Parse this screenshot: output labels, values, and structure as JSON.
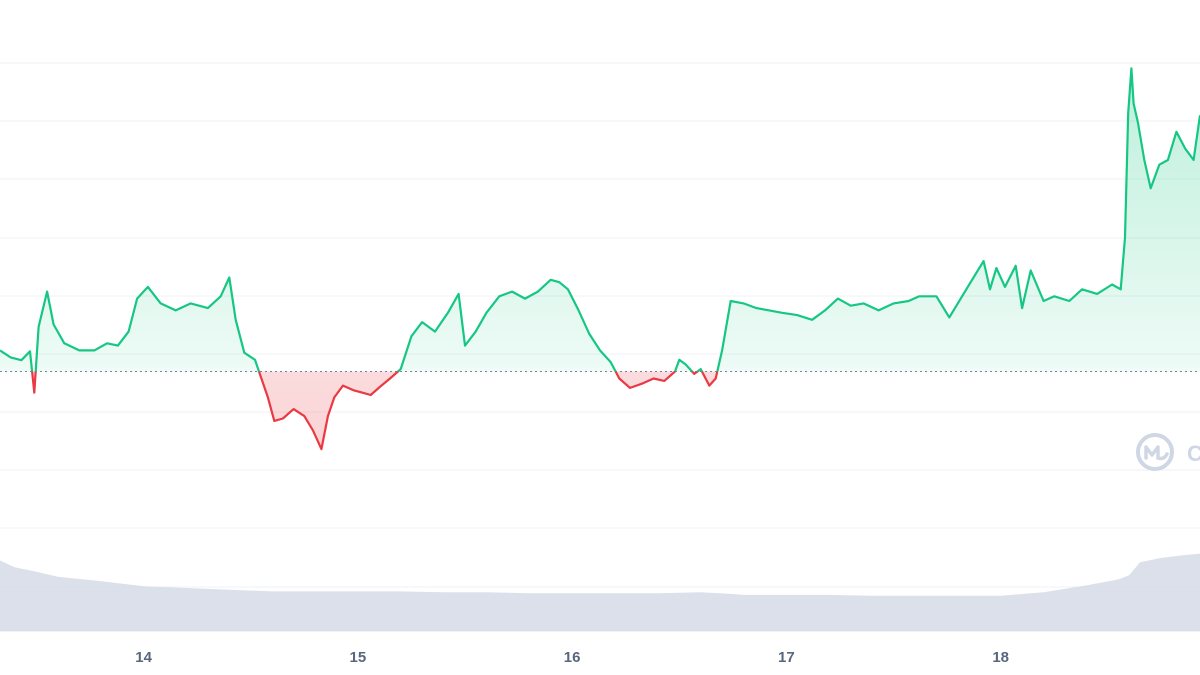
{
  "chart_data": {
    "type": "area",
    "title": "",
    "xlabel": "",
    "ylabel": "",
    "x_ticks": [
      {
        "label": "14",
        "day": 14
      },
      {
        "label": "15",
        "day": 15
      },
      {
        "label": "16",
        "day": 16
      },
      {
        "label": "17",
        "day": 17
      },
      {
        "label": "18",
        "day": 18
      }
    ],
    "xlim": [
      13.33,
      18.93
    ],
    "ylim": [
      0,
      100
    ],
    "baseline_value": 35,
    "grid": true,
    "colors": {
      "up": "#16c784",
      "down": "#ea3943",
      "volume": "#d5dae6",
      "grid": "#eff2f5",
      "baseline": "#58667e",
      "watermark": "#cfd6e4"
    },
    "watermark_icon": "coinmarketcap-logo-icon",
    "price_series": {
      "name": "",
      "points": [
        [
          13.33,
          39.5
        ],
        [
          13.38,
          38.0
        ],
        [
          13.43,
          37.4
        ],
        [
          13.47,
          39.3
        ],
        [
          13.49,
          30.5
        ],
        [
          13.51,
          44.5
        ],
        [
          13.55,
          52.0
        ],
        [
          13.58,
          45.0
        ],
        [
          13.63,
          41.0
        ],
        [
          13.7,
          39.5
        ],
        [
          13.77,
          39.5
        ],
        [
          13.83,
          41.0
        ],
        [
          13.88,
          40.5
        ],
        [
          13.93,
          43.5
        ],
        [
          13.97,
          50.5
        ],
        [
          14.02,
          53.0
        ],
        [
          14.08,
          49.5
        ],
        [
          14.15,
          48.0
        ],
        [
          14.22,
          49.5
        ],
        [
          14.3,
          48.5
        ],
        [
          14.36,
          51.0
        ],
        [
          14.4,
          55.0
        ],
        [
          14.43,
          46.0
        ],
        [
          14.47,
          39.0
        ],
        [
          14.52,
          37.5
        ],
        [
          14.55,
          33.5
        ],
        [
          14.58,
          29.5
        ],
        [
          14.61,
          24.5
        ],
        [
          14.65,
          25.0
        ],
        [
          14.7,
          27.0
        ],
        [
          14.75,
          25.5
        ],
        [
          14.79,
          22.5
        ],
        [
          14.83,
          18.5
        ],
        [
          14.86,
          25.5
        ],
        [
          14.89,
          29.5
        ],
        [
          14.93,
          32.0
        ],
        [
          14.98,
          31.0
        ],
        [
          15.02,
          30.5
        ],
        [
          15.06,
          30.0
        ],
        [
          15.11,
          32.0
        ],
        [
          15.15,
          33.5
        ],
        [
          15.2,
          35.5
        ],
        [
          15.25,
          42.5
        ],
        [
          15.3,
          45.5
        ],
        [
          15.36,
          43.5
        ],
        [
          15.42,
          47.5
        ],
        [
          15.47,
          51.5
        ],
        [
          15.5,
          40.5
        ],
        [
          15.55,
          43.5
        ],
        [
          15.6,
          47.5
        ],
        [
          15.66,
          51.0
        ],
        [
          15.72,
          52.0
        ],
        [
          15.78,
          50.5
        ],
        [
          15.84,
          52.0
        ],
        [
          15.9,
          54.5
        ],
        [
          15.94,
          54.0
        ],
        [
          15.98,
          52.5
        ],
        [
          16.03,
          48.0
        ],
        [
          16.08,
          43.0
        ],
        [
          16.13,
          39.5
        ],
        [
          16.18,
          37.0
        ],
        [
          16.22,
          33.5
        ],
        [
          16.27,
          31.5
        ],
        [
          16.33,
          32.5
        ],
        [
          16.38,
          33.5
        ],
        [
          16.43,
          33.0
        ],
        [
          16.48,
          35.0
        ],
        [
          16.5,
          37.5
        ],
        [
          16.53,
          36.5
        ],
        [
          16.57,
          34.5
        ],
        [
          16.6,
          35.5
        ],
        [
          16.64,
          32.0
        ],
        [
          16.67,
          33.5
        ],
        [
          16.7,
          39.5
        ],
        [
          16.74,
          50.0
        ],
        [
          16.8,
          49.5
        ],
        [
          16.86,
          48.5
        ],
        [
          16.92,
          48.0
        ],
        [
          16.98,
          47.5
        ],
        [
          17.05,
          47.0
        ],
        [
          17.12,
          46.0
        ],
        [
          17.18,
          48.0
        ],
        [
          17.24,
          50.5
        ],
        [
          17.3,
          49.0
        ],
        [
          17.36,
          49.5
        ],
        [
          17.43,
          48.0
        ],
        [
          17.5,
          49.5
        ],
        [
          17.57,
          50.0
        ],
        [
          17.62,
          51.0
        ],
        [
          17.7,
          51.0
        ],
        [
          17.76,
          46.5
        ],
        [
          17.82,
          51.0
        ],
        [
          17.88,
          55.5
        ],
        [
          17.92,
          58.5
        ],
        [
          17.95,
          52.5
        ],
        [
          17.98,
          57.0
        ],
        [
          18.02,
          53.0
        ],
        [
          18.07,
          57.5
        ],
        [
          18.1,
          48.5
        ],
        [
          18.14,
          56.5
        ],
        [
          18.2,
          50.0
        ],
        [
          18.25,
          51.0
        ],
        [
          18.32,
          50.0
        ],
        [
          18.38,
          52.5
        ],
        [
          18.45,
          51.5
        ],
        [
          18.52,
          53.5
        ],
        [
          18.56,
          52.5
        ],
        [
          18.58,
          63.5
        ],
        [
          18.595,
          90.0
        ],
        [
          18.61,
          99.5
        ],
        [
          18.62,
          92.0
        ],
        [
          18.64,
          88.0
        ],
        [
          18.67,
          80.0
        ],
        [
          18.7,
          74.0
        ],
        [
          18.74,
          79.0
        ],
        [
          18.78,
          80.0
        ],
        [
          18.82,
          86.0
        ],
        [
          18.86,
          82.5
        ],
        [
          18.9,
          80.0
        ],
        [
          18.93,
          89.5
        ]
      ]
    },
    "volume_series": {
      "name": "",
      "points": [
        [
          13.33,
          82
        ],
        [
          13.4,
          74
        ],
        [
          13.5,
          69
        ],
        [
          13.6,
          63
        ],
        [
          13.8,
          58
        ],
        [
          14.0,
          52
        ],
        [
          14.2,
          50
        ],
        [
          14.4,
          48
        ],
        [
          14.6,
          46
        ],
        [
          14.8,
          46
        ],
        [
          15.0,
          46
        ],
        [
          15.2,
          46
        ],
        [
          15.4,
          45
        ],
        [
          15.6,
          45
        ],
        [
          15.8,
          44
        ],
        [
          16.0,
          44
        ],
        [
          16.2,
          44
        ],
        [
          16.4,
          44
        ],
        [
          16.6,
          45
        ],
        [
          16.75,
          43
        ],
        [
          16.8,
          42
        ],
        [
          17.0,
          42
        ],
        [
          17.2,
          42
        ],
        [
          17.4,
          41
        ],
        [
          17.6,
          41
        ],
        [
          17.8,
          41
        ],
        [
          18.0,
          41
        ],
        [
          18.2,
          45
        ],
        [
          18.4,
          53
        ],
        [
          18.55,
          60
        ],
        [
          18.6,
          65
        ],
        [
          18.65,
          80
        ],
        [
          18.75,
          85
        ],
        [
          18.85,
          88
        ],
        [
          18.93,
          90
        ]
      ]
    }
  }
}
